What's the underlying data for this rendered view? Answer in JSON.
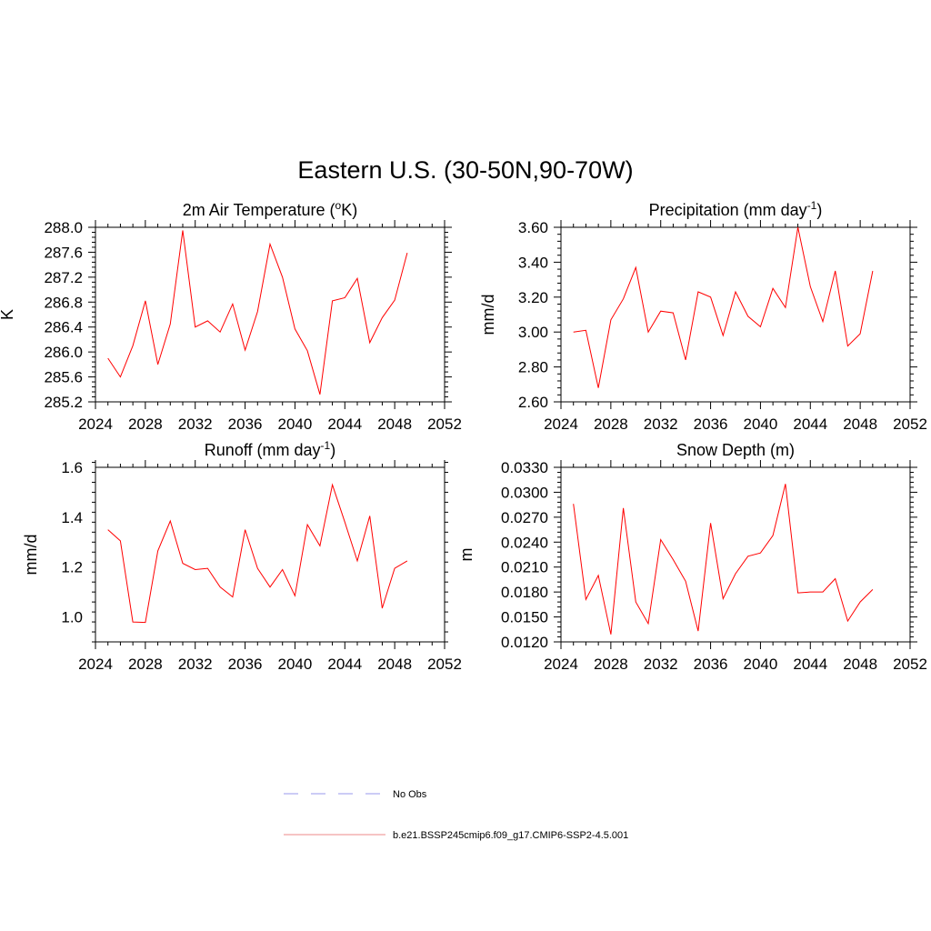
{
  "title": "Eastern U.S. (30-50N,90-70W)",
  "legend": [
    {
      "label": "No Obs",
      "color": "#9999ee",
      "dash": true
    },
    {
      "label": "b.e21.BSSP245cmip6.f09_g17.CMIP6-SSP2-4.5.001",
      "color": "#ee8888",
      "dash": false
    }
  ],
  "chart_data": [
    {
      "type": "line",
      "title": "2m Air Temperature (",
      "title_sup": "o",
      "title_after": "K)",
      "ylabel": "K",
      "xlim": [
        2024,
        2052
      ],
      "ylim": [
        285.2,
        288.0
      ],
      "xticks": [
        "2024",
        "2028",
        "2032",
        "2036",
        "2040",
        "2044",
        "2048",
        "2052"
      ],
      "yticks": [
        "285.2",
        "285.6",
        "286.0",
        "286.4",
        "286.8",
        "287.2",
        "287.6",
        "288.0"
      ],
      "color": "#ff0000",
      "x": [
        2025,
        2026,
        2027,
        2028,
        2029,
        2030,
        2031,
        2032,
        2033,
        2034,
        2035,
        2036,
        2037,
        2038,
        2039,
        2040,
        2041,
        2042,
        2043,
        2044,
        2045,
        2046,
        2047,
        2048,
        2049
      ],
      "y": [
        285.9,
        285.6,
        286.1,
        286.82,
        285.8,
        286.45,
        287.95,
        286.4,
        286.5,
        286.32,
        286.77,
        286.03,
        286.65,
        287.73,
        287.2,
        286.37,
        286.02,
        285.32,
        286.82,
        286.87,
        287.18,
        286.15,
        286.55,
        286.83,
        287.59
      ]
    },
    {
      "type": "line",
      "title": "Precipitation (mm day",
      "title_sup": "-1",
      "title_after": ")",
      "ylabel": "mm/d",
      "xlim": [
        2024,
        2052
      ],
      "ylim": [
        2.6,
        3.6
      ],
      "xticks": [
        "2024",
        "2028",
        "2032",
        "2036",
        "2040",
        "2044",
        "2048",
        "2052"
      ],
      "yticks": [
        "2.60",
        "2.80",
        "3.00",
        "3.20",
        "3.40",
        "3.60"
      ],
      "color": "#ff0000",
      "x": [
        2025,
        2026,
        2027,
        2028,
        2029,
        2030,
        2031,
        2032,
        2033,
        2034,
        2035,
        2036,
        2037,
        2038,
        2039,
        2040,
        2041,
        2042,
        2043,
        2044,
        2045,
        2046,
        2047,
        2048,
        2049
      ],
      "y": [
        3.0,
        3.01,
        2.68,
        3.07,
        3.19,
        3.37,
        3.0,
        3.12,
        3.11,
        2.84,
        3.23,
        3.2,
        2.98,
        3.23,
        3.09,
        3.03,
        3.25,
        3.14,
        3.6,
        3.26,
        3.06,
        3.35,
        2.92,
        2.99,
        3.35
      ]
    },
    {
      "type": "line",
      "title": "Runoff (mm day",
      "title_sup": "-1",
      "title_after": ")",
      "ylabel": "mm/d",
      "xlim": [
        2024,
        2052
      ],
      "ylim": [
        0.9,
        1.6
      ],
      "xticks": [
        "2024",
        "2028",
        "2032",
        "2036",
        "2040",
        "2044",
        "2048",
        "2052"
      ],
      "yticks": [
        "1.0",
        "1.2",
        "1.4",
        "1.6"
      ],
      "ytick_values": [
        1.0,
        1.2,
        1.4,
        1.6
      ],
      "color": "#ff0000",
      "x": [
        2025,
        2026,
        2027,
        2028,
        2029,
        2030,
        2031,
        2032,
        2033,
        2034,
        2035,
        2036,
        2037,
        2038,
        2039,
        2040,
        2041,
        2042,
        2043,
        2044,
        2045,
        2046,
        2047,
        2048,
        2049
      ],
      "y": [
        1.35,
        1.305,
        0.98,
        0.978,
        1.265,
        1.385,
        1.215,
        1.19,
        1.195,
        1.12,
        1.08,
        1.35,
        1.195,
        1.12,
        1.19,
        1.085,
        1.37,
        1.285,
        1.53,
        1.38,
        1.225,
        1.405,
        1.035,
        1.195,
        1.225
      ]
    },
    {
      "type": "line",
      "title": "Snow Depth (m)",
      "title_sup": "",
      "title_after": "",
      "ylabel": "m",
      "xlim": [
        2024,
        2052
      ],
      "ylim": [
        0.012,
        0.033
      ],
      "xticks": [
        "2024",
        "2028",
        "2032",
        "2036",
        "2040",
        "2044",
        "2048",
        "2052"
      ],
      "yticks": [
        "0.0120",
        "0.0150",
        "0.0180",
        "0.0210",
        "0.0240",
        "0.0270",
        "0.0300",
        "0.0330"
      ],
      "color": "#ff0000",
      "x": [
        2025,
        2026,
        2027,
        2028,
        2029,
        2030,
        2031,
        2032,
        2033,
        2034,
        2035,
        2036,
        2037,
        2038,
        2039,
        2040,
        2041,
        2042,
        2043,
        2044,
        2045,
        2046,
        2047,
        2048,
        2049
      ],
      "y": [
        0.0286,
        0.0171,
        0.02,
        0.0129,
        0.0281,
        0.0168,
        0.0142,
        0.0243,
        0.0219,
        0.0193,
        0.0133,
        0.0263,
        0.0172,
        0.0202,
        0.0223,
        0.0227,
        0.0248,
        0.031,
        0.0179,
        0.018,
        0.018,
        0.0196,
        0.0145,
        0.0168,
        0.0183
      ]
    }
  ]
}
